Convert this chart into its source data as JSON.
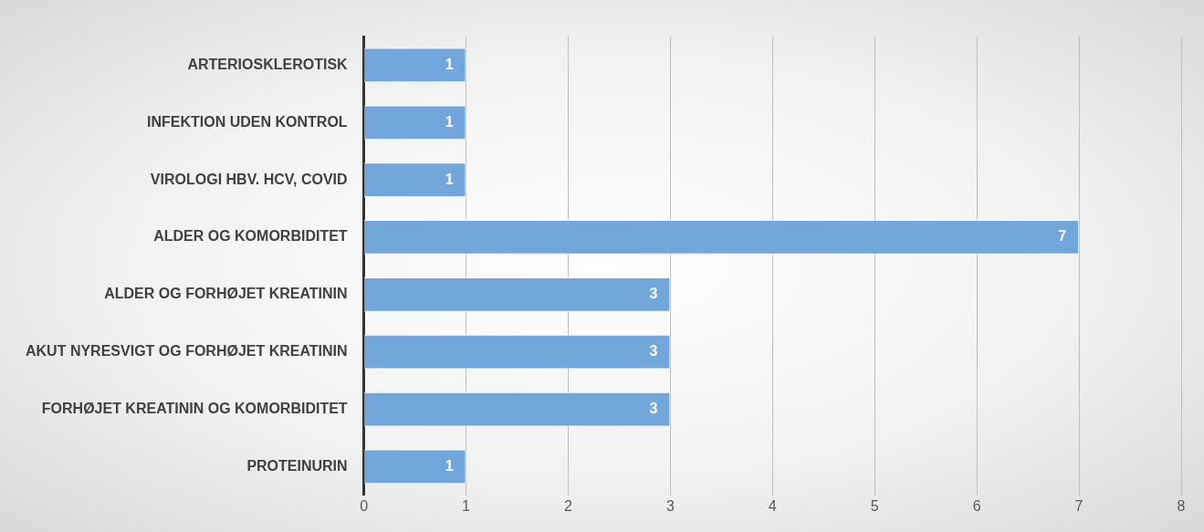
{
  "chart_data": {
    "type": "bar",
    "orientation": "horizontal",
    "categories": [
      "ARTERIOSKLEROTISK",
      "INFEKTION UDEN KONTROL",
      "VIROLOGI HBV. HCV, COVID",
      "ALDER OG KOMORBIDITET",
      "ALDER OG FORHØJET KREATININ",
      "AKUT NYRESVIGT OG FORHØJET KREATININ",
      "FORHØJET KREATININ OG KOMORBIDITET",
      "PROTEINURIN"
    ],
    "values": [
      1,
      1,
      1,
      7,
      3,
      3,
      3,
      1
    ],
    "color": "#72a7dc",
    "xlim": [
      0,
      8
    ],
    "xticks": [
      0,
      1,
      2,
      3,
      4,
      5,
      6,
      7,
      8
    ],
    "grid": "x",
    "data_labels": true,
    "legend": false
  }
}
